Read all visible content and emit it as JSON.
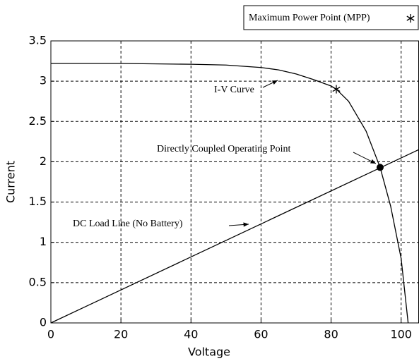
{
  "chart_data": {
    "type": "line",
    "xlabel": "Voltage",
    "ylabel": "Current",
    "xlim": [
      0,
      105
    ],
    "ylim": [
      0,
      3.5
    ],
    "xticks": [
      0,
      20,
      40,
      60,
      80,
      100
    ],
    "yticks": [
      0,
      0.5,
      1,
      1.5,
      2,
      2.5,
      3,
      3.5
    ],
    "grid": true,
    "series": [
      {
        "name": "I-V Curve",
        "color": "#000000",
        "x": [
          0,
          20,
          40,
          50,
          60,
          65,
          70,
          75,
          80,
          81.5,
          85,
          90,
          94,
          97,
          100,
          102
        ],
        "values": [
          3.22,
          3.22,
          3.21,
          3.2,
          3.17,
          3.14,
          3.09,
          3.02,
          2.94,
          2.9,
          2.75,
          2.38,
          1.93,
          1.45,
          0.8,
          0
        ]
      },
      {
        "name": "DC Load Line (No Battery)",
        "color": "#000000",
        "x": [
          0,
          105
        ],
        "values": [
          0,
          2.15
        ]
      }
    ],
    "points": [
      {
        "name": "Maximum Power Point (MPP)",
        "x": 81.5,
        "y": 2.9
      },
      {
        "name": "Directly Coupled Operating Point",
        "x": 94,
        "y": 1.93
      }
    ]
  }
}
